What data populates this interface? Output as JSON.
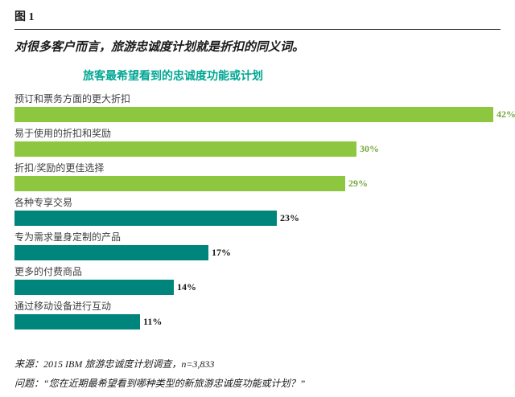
{
  "figure": {
    "label": "图 1",
    "subtitle": "对很多客户而言，旅游忠诚度计划就是折扣的同义词。"
  },
  "chart_data": {
    "type": "bar",
    "orientation": "horizontal",
    "title": "旅客最希望看到的忠诚度功能或计划",
    "title_color": "#00A693",
    "categories": [
      "预订和票务方面的更大折扣",
      "易于使用的折扣和奖励",
      "折扣/奖励的更佳选择",
      "各种专享交易",
      "专为需求量身定制的产品",
      "更多的付费商品",
      "通过移动设备进行互动"
    ],
    "values": [
      42,
      30,
      29,
      23,
      17,
      14,
      11
    ],
    "value_labels": [
      "42%",
      "30%",
      "29%",
      "23%",
      "17%",
      "14%",
      "11%"
    ],
    "bar_colors": [
      "#8DC63F",
      "#8DC63F",
      "#8DC63F",
      "#00857C",
      "#00857C",
      "#00857C",
      "#00857C"
    ],
    "value_label_colors": [
      "#73A83C",
      "#73A83C",
      "#73A83C",
      "#1a1a1a",
      "#1a1a1a",
      "#1a1a1a",
      "#1a1a1a"
    ],
    "xlim": [
      0,
      42
    ],
    "grid": false,
    "legend": "none",
    "xlabel": "",
    "ylabel": ""
  },
  "footer": {
    "source": "来源：2015 IBM 旅游忠诚度计划调查，n=3,833",
    "question": "问题：“您在近期最希望看到哪种类型的新旅游忠诚度功能或计划？”"
  }
}
